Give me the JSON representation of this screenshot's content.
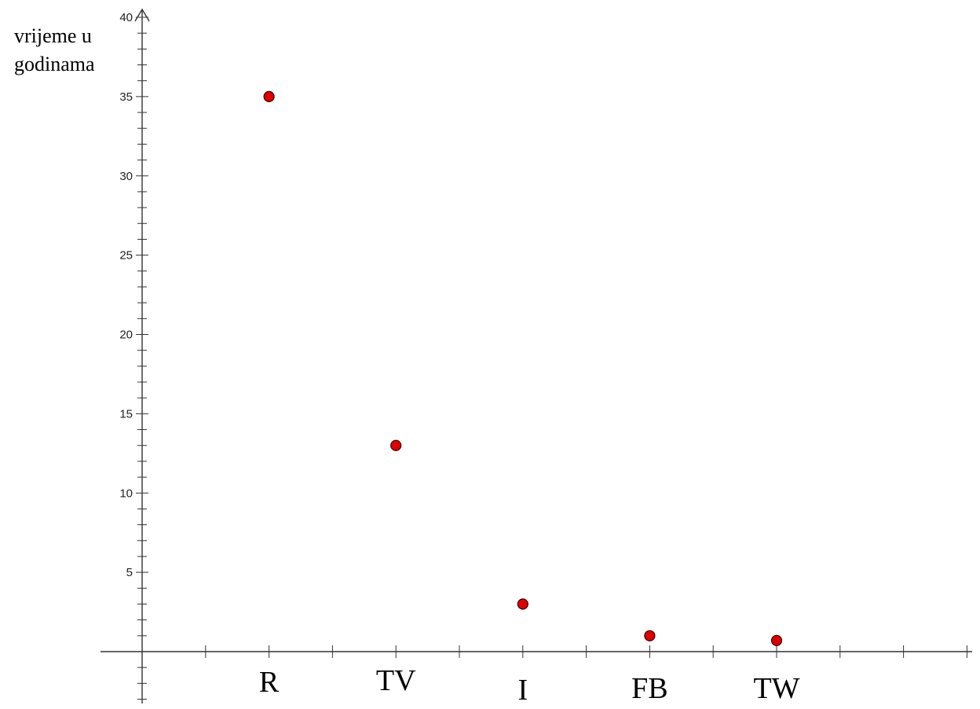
{
  "chart_data": {
    "type": "scatter",
    "ylabel_lines": [
      "vrijeme u",
      "godinama"
    ],
    "categories": [
      "R",
      "TV",
      "I",
      "FB",
      "TW"
    ],
    "values": [
      35,
      13,
      3,
      1,
      0.7
    ],
    "ylim": [
      0,
      40
    ],
    "yticks": [
      5,
      10,
      15,
      20,
      25,
      30,
      35,
      40
    ],
    "grid": false,
    "colors": {
      "point": "#e00000",
      "axis": "#333333"
    }
  }
}
